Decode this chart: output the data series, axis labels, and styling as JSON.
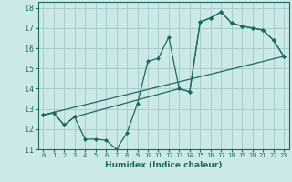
{
  "xlabel": "Humidex (Indice chaleur)",
  "background_color": "#cce9e9",
  "grid_color": "#aacccc",
  "line_color": "#1a6b5e",
  "xlim": [
    -0.5,
    23.5
  ],
  "ylim": [
    11,
    18.3
  ],
  "yticks": [
    11,
    12,
    13,
    14,
    15,
    16,
    17,
    18
  ],
  "xticks": [
    0,
    1,
    2,
    3,
    4,
    5,
    6,
    7,
    8,
    9,
    10,
    11,
    12,
    13,
    14,
    15,
    16,
    17,
    18,
    19,
    20,
    21,
    22,
    23
  ],
  "series1_x": [
    0,
    1,
    2,
    3,
    4,
    5,
    6,
    7,
    8,
    9,
    10,
    11,
    12,
    13,
    14,
    15,
    16,
    17,
    18,
    19,
    20,
    21,
    22,
    23
  ],
  "series1_y": [
    12.7,
    12.8,
    12.2,
    12.6,
    11.5,
    11.5,
    11.45,
    11.0,
    11.8,
    13.25,
    15.35,
    15.5,
    16.55,
    14.0,
    13.85,
    17.3,
    17.5,
    17.8,
    17.25,
    17.1,
    17.0,
    16.9,
    16.4,
    15.6
  ],
  "series2_x": [
    0,
    23
  ],
  "series2_y": [
    12.7,
    15.6
  ],
  "series3_x": [
    0,
    1,
    2,
    3,
    13,
    14,
    15,
    16,
    17,
    18,
    19,
    20,
    21,
    22,
    23
  ],
  "series3_y": [
    12.7,
    12.8,
    12.2,
    12.6,
    14.0,
    13.85,
    17.3,
    17.5,
    17.8,
    17.25,
    17.1,
    17.0,
    16.9,
    16.4,
    15.6
  ]
}
